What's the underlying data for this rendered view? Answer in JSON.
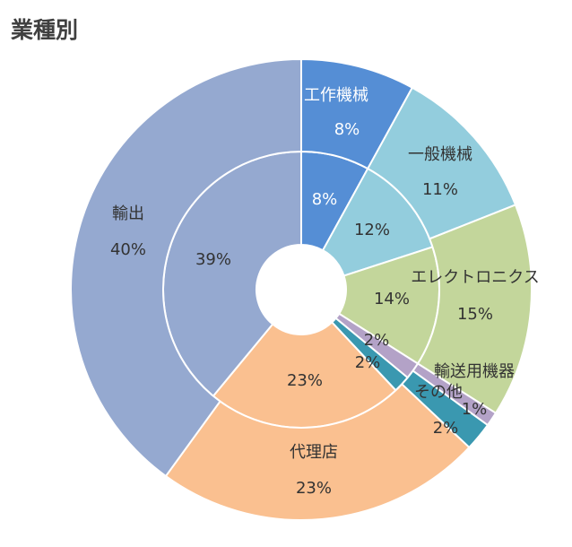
{
  "title": "業種別",
  "chart_data": {
    "type": "pie",
    "variant": "double-donut",
    "title": "業種別",
    "categories": [
      "工作機械",
      "一般機械",
      "エレクトロニクス",
      "輸送用機器",
      "その他",
      "代理店",
      "輸出"
    ],
    "colors": [
      "#558ed5",
      "#93cddd",
      "#c3d69b",
      "#b3a2c7",
      "#3a98b0",
      "#fac090",
      "#95a9d0"
    ],
    "series": [
      {
        "ring": "inner",
        "values": [
          8,
          12,
          14,
          2,
          2,
          23,
          39
        ],
        "labels": [
          "8%",
          "12%",
          "14%",
          "2%",
          "2%",
          "23%",
          "39%"
        ]
      },
      {
        "ring": "outer",
        "values": [
          8,
          11,
          15,
          1,
          2,
          23,
          40
        ],
        "labels": [
          "8%",
          "11%",
          "15%",
          "1%",
          "2%",
          "23%",
          "40%"
        ]
      }
    ]
  }
}
